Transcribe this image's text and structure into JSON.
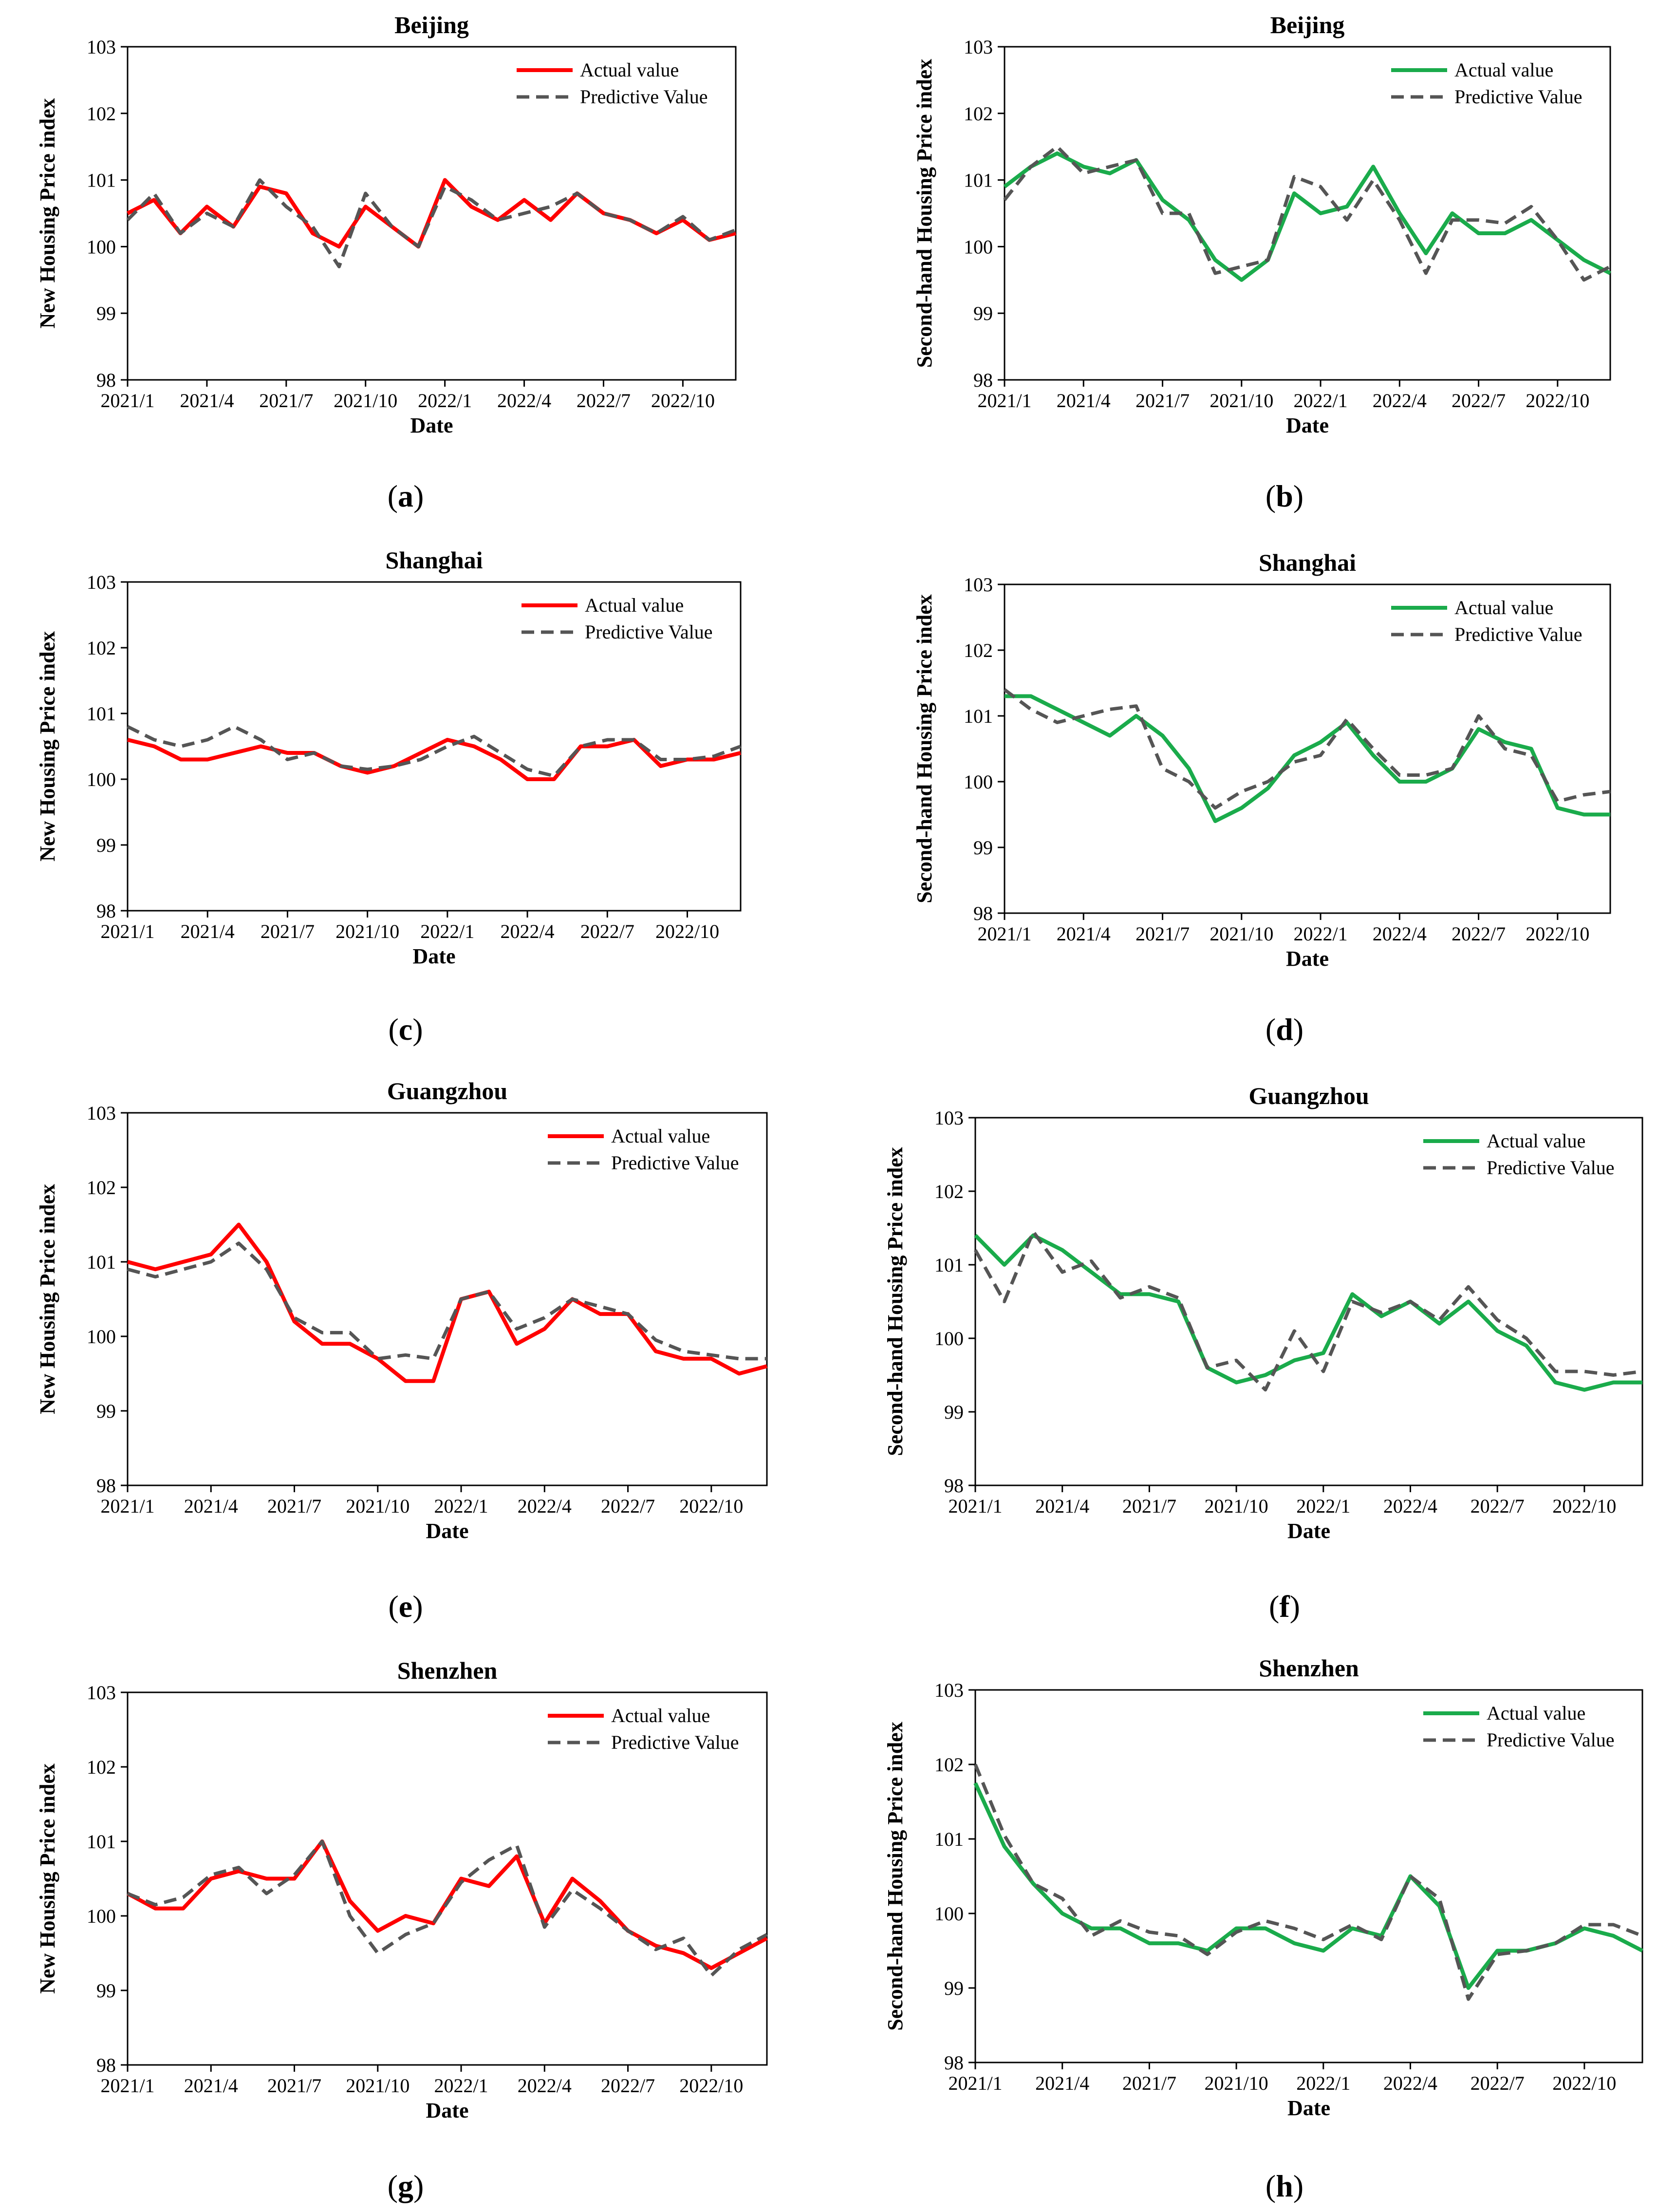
{
  "colors": {
    "actual_new": "#ff0000",
    "actual_second": "#1aab4b",
    "predicted": "#555555"
  },
  "chart_data": [
    {
      "panel": "a",
      "type": "line",
      "title": "Beijing",
      "xlabel": "Date",
      "ylabel": "New Housing Price index",
      "ylim": [
        98,
        103
      ],
      "y_ticks": [
        98,
        99,
        100,
        101,
        102,
        103
      ],
      "x": [
        "2021/1",
        "2021/2",
        "2021/3",
        "2021/4",
        "2021/5",
        "2021/6",
        "2021/7",
        "2021/8",
        "2021/9",
        "2021/10",
        "2021/11",
        "2021/12",
        "2022/1",
        "2022/2",
        "2022/3",
        "2022/4",
        "2022/5",
        "2022/6",
        "2022/7",
        "2022/8",
        "2022/9",
        "2022/10",
        "2022/11",
        "2022/12"
      ],
      "x_tick_labels": [
        "2021/1",
        "2021/4",
        "2021/7",
        "2021/10",
        "2022/1",
        "2022/4",
        "2022/7",
        "2022/10"
      ],
      "legend_position": "top-right",
      "series": [
        {
          "name": "Actual value",
          "style": "solid",
          "color_key": "actual_new",
          "values": [
            100.5,
            100.7,
            100.2,
            100.6,
            100.3,
            100.9,
            100.8,
            100.2,
            100.0,
            100.6,
            100.3,
            100.0,
            101.0,
            100.6,
            100.4,
            100.7,
            100.4,
            100.8,
            100.5,
            100.4,
            100.2,
            100.4,
            100.1,
            100.2
          ]
        },
        {
          "name": "Predictive Value",
          "style": "dashed",
          "color_key": "predicted",
          "values": [
            100.4,
            100.8,
            100.2,
            100.5,
            100.3,
            101.0,
            100.6,
            100.3,
            99.7,
            100.8,
            100.3,
            100.0,
            100.9,
            100.7,
            100.4,
            100.5,
            100.6,
            100.8,
            100.5,
            100.4,
            100.2,
            100.45,
            100.1,
            100.25
          ]
        }
      ]
    },
    {
      "panel": "b",
      "type": "line",
      "title": "Beijing",
      "xlabel": "Date",
      "ylabel": "Second-hand Housing Price index",
      "ylim": [
        98,
        103
      ],
      "y_ticks": [
        98,
        99,
        100,
        101,
        102,
        103
      ],
      "x": [
        "2021/1",
        "2021/2",
        "2021/3",
        "2021/4",
        "2021/5",
        "2021/6",
        "2021/7",
        "2021/8",
        "2021/9",
        "2021/10",
        "2021/11",
        "2021/12",
        "2022/1",
        "2022/2",
        "2022/3",
        "2022/4",
        "2022/5",
        "2022/6",
        "2022/7",
        "2022/8",
        "2022/9",
        "2022/10",
        "2022/11",
        "2022/12"
      ],
      "x_tick_labels": [
        "2021/1",
        "2021/4",
        "2021/7",
        "2021/10",
        "2022/1",
        "2022/4",
        "2022/7",
        "2022/10"
      ],
      "legend_position": "top-right",
      "series": [
        {
          "name": "Actual value",
          "style": "solid",
          "color_key": "actual_second",
          "values": [
            100.9,
            101.2,
            101.4,
            101.2,
            101.1,
            101.3,
            100.7,
            100.4,
            99.8,
            99.5,
            99.8,
            100.8,
            100.5,
            100.6,
            101.2,
            100.5,
            99.9,
            100.5,
            100.2,
            100.2,
            100.4,
            100.1,
            99.8,
            99.6
          ]
        },
        {
          "name": "Predictive Value",
          "style": "dashed",
          "color_key": "predicted",
          "values": [
            100.7,
            101.2,
            101.5,
            101.1,
            101.2,
            101.3,
            100.5,
            100.5,
            99.6,
            99.7,
            99.8,
            101.05,
            100.9,
            100.4,
            101.0,
            100.4,
            99.6,
            100.4,
            100.4,
            100.35,
            100.6,
            100.1,
            99.5,
            99.7
          ]
        }
      ]
    },
    {
      "panel": "c",
      "type": "line",
      "title": "Shanghai",
      "xlabel": "Date",
      "ylabel": "New Housing Price index",
      "ylim": [
        98,
        103
      ],
      "y_ticks": [
        98,
        99,
        100,
        101,
        102,
        103
      ],
      "x": [
        "2021/1",
        "2021/2",
        "2021/3",
        "2021/4",
        "2021/5",
        "2021/6",
        "2021/7",
        "2021/8",
        "2021/9",
        "2021/10",
        "2021/11",
        "2021/12",
        "2022/1",
        "2022/2",
        "2022/3",
        "2022/4",
        "2022/5",
        "2022/6",
        "2022/7",
        "2022/8",
        "2022/9",
        "2022/10",
        "2022/11",
        "2022/12"
      ],
      "x_tick_labels": [
        "2021/1",
        "2021/4",
        "2021/7",
        "2021/10",
        "2022/1",
        "2022/4",
        "2022/7",
        "2022/10"
      ],
      "legend_position": "top-right",
      "series": [
        {
          "name": "Actual value",
          "style": "solid",
          "color_key": "actual_new",
          "values": [
            100.6,
            100.5,
            100.3,
            100.3,
            100.4,
            100.5,
            100.4,
            100.4,
            100.2,
            100.1,
            100.2,
            100.4,
            100.6,
            100.5,
            100.3,
            100.0,
            100.0,
            100.5,
            100.5,
            100.6,
            100.2,
            100.3,
            100.3,
            100.4
          ]
        },
        {
          "name": "Predictive Value",
          "style": "dashed",
          "color_key": "predicted",
          "values": [
            100.8,
            100.6,
            100.5,
            100.6,
            100.8,
            100.6,
            100.3,
            100.4,
            100.2,
            100.15,
            100.2,
            100.3,
            100.5,
            100.65,
            100.4,
            100.15,
            100.05,
            100.5,
            100.6,
            100.6,
            100.3,
            100.3,
            100.35,
            100.5
          ]
        }
      ]
    },
    {
      "panel": "d",
      "type": "line",
      "title": "Shanghai",
      "xlabel": "Date",
      "ylabel": "Second-hand Housing Price index",
      "ylim": [
        98,
        103
      ],
      "y_ticks": [
        98,
        99,
        100,
        101,
        102,
        103
      ],
      "x": [
        "2021/1",
        "2021/2",
        "2021/3",
        "2021/4",
        "2021/5",
        "2021/6",
        "2021/7",
        "2021/8",
        "2021/9",
        "2021/10",
        "2021/11",
        "2021/12",
        "2022/1",
        "2022/2",
        "2022/3",
        "2022/4",
        "2022/5",
        "2022/6",
        "2022/7",
        "2022/8",
        "2022/9",
        "2022/10",
        "2022/11",
        "2022/12"
      ],
      "x_tick_labels": [
        "2021/1",
        "2021/4",
        "2021/7",
        "2021/10",
        "2022/1",
        "2022/4",
        "2022/7",
        "2022/10"
      ],
      "legend_position": "top-right",
      "series": [
        {
          "name": "Actual value",
          "style": "solid",
          "color_key": "actual_second",
          "values": [
            101.3,
            101.3,
            101.1,
            100.9,
            100.7,
            101.0,
            100.7,
            100.2,
            99.4,
            99.6,
            99.9,
            100.4,
            100.6,
            100.9,
            100.4,
            100.0,
            100.0,
            100.2,
            100.8,
            100.6,
            100.5,
            99.6,
            99.5,
            99.5
          ]
        },
        {
          "name": "Predictive Value",
          "style": "dashed",
          "color_key": "predicted",
          "values": [
            101.4,
            101.1,
            100.9,
            101.0,
            101.1,
            101.15,
            100.2,
            100.0,
            99.6,
            99.85,
            100.0,
            100.3,
            100.4,
            100.95,
            100.5,
            100.1,
            100.1,
            100.2,
            101.0,
            100.5,
            100.4,
            99.7,
            99.8,
            99.85
          ]
        }
      ]
    },
    {
      "panel": "e",
      "type": "line",
      "title": "Guangzhou",
      "xlabel": "Date",
      "ylabel": "New Housing Price index",
      "ylim": [
        98,
        103
      ],
      "y_ticks": [
        98,
        99,
        100,
        101,
        102,
        103
      ],
      "x": [
        "2021/1",
        "2021/2",
        "2021/3",
        "2021/4",
        "2021/5",
        "2021/6",
        "2021/7",
        "2021/8",
        "2021/9",
        "2021/10",
        "2021/11",
        "2021/12",
        "2022/1",
        "2022/2",
        "2022/3",
        "2022/4",
        "2022/5",
        "2022/6",
        "2022/7",
        "2022/8",
        "2022/9",
        "2022/10",
        "2022/11",
        "2022/12"
      ],
      "x_tick_labels": [
        "2021/1",
        "2021/4",
        "2021/7",
        "2021/10",
        "2022/1",
        "2022/4",
        "2022/7",
        "2022/10"
      ],
      "legend_position": "top-right",
      "series": [
        {
          "name": "Actual value",
          "style": "solid",
          "color_key": "actual_new",
          "values": [
            101.0,
            100.9,
            101.0,
            101.1,
            101.5,
            101.0,
            100.2,
            99.9,
            99.9,
            99.7,
            99.4,
            99.4,
            100.5,
            100.6,
            99.9,
            100.1,
            100.5,
            100.3,
            100.3,
            99.8,
            99.7,
            99.7,
            99.5,
            99.6
          ]
        },
        {
          "name": "Predictive Value",
          "style": "dashed",
          "color_key": "predicted",
          "values": [
            100.9,
            100.8,
            100.9,
            101.0,
            101.25,
            100.9,
            100.25,
            100.05,
            100.05,
            99.7,
            99.75,
            99.7,
            100.5,
            100.6,
            100.1,
            100.25,
            100.5,
            100.4,
            100.3,
            99.95,
            99.8,
            99.75,
            99.7,
            99.7
          ]
        }
      ]
    },
    {
      "panel": "f",
      "type": "line",
      "title": "Guangzhou",
      "xlabel": "Date",
      "ylabel": "Second-hand Housing Price index",
      "ylim": [
        98,
        103
      ],
      "y_ticks": [
        98,
        99,
        100,
        101,
        102,
        103
      ],
      "x": [
        "2021/1",
        "2021/2",
        "2021/3",
        "2021/4",
        "2021/5",
        "2021/6",
        "2021/7",
        "2021/8",
        "2021/9",
        "2021/10",
        "2021/11",
        "2021/12",
        "2022/1",
        "2022/2",
        "2022/3",
        "2022/4",
        "2022/5",
        "2022/6",
        "2022/7",
        "2022/8",
        "2022/9",
        "2022/10",
        "2022/11",
        "2022/12"
      ],
      "x_tick_labels": [
        "2021/1",
        "2021/4",
        "2021/7",
        "2021/10",
        "2022/1",
        "2022/4",
        "2022/7",
        "2022/10"
      ],
      "legend_position": "top-right",
      "series": [
        {
          "name": "Actual value",
          "style": "solid",
          "color_key": "actual_second",
          "values": [
            101.4,
            101.0,
            101.4,
            101.2,
            100.9,
            100.6,
            100.6,
            100.5,
            99.6,
            99.4,
            99.5,
            99.7,
            99.8,
            100.6,
            100.3,
            100.5,
            100.2,
            100.5,
            100.1,
            99.9,
            99.4,
            99.3,
            99.4,
            99.4
          ]
        },
        {
          "name": "Predictive Value",
          "style": "dashed",
          "color_key": "predicted",
          "values": [
            101.2,
            100.5,
            101.45,
            100.9,
            101.05,
            100.55,
            100.7,
            100.55,
            99.6,
            99.7,
            99.3,
            100.1,
            99.55,
            100.5,
            100.35,
            100.5,
            100.25,
            100.7,
            100.25,
            100.0,
            99.55,
            99.55,
            99.5,
            99.55
          ]
        }
      ]
    },
    {
      "panel": "g",
      "type": "line",
      "title": "Shenzhen",
      "xlabel": "Date",
      "ylabel": "New Housing Price index",
      "ylim": [
        98,
        103
      ],
      "y_ticks": [
        98,
        99,
        100,
        101,
        102,
        103
      ],
      "x": [
        "2021/1",
        "2021/2",
        "2021/3",
        "2021/4",
        "2021/5",
        "2021/6",
        "2021/7",
        "2021/8",
        "2021/9",
        "2021/10",
        "2021/11",
        "2021/12",
        "2022/1",
        "2022/2",
        "2022/3",
        "2022/4",
        "2022/5",
        "2022/6",
        "2022/7",
        "2022/8",
        "2022/9",
        "2022/10",
        "2022/11",
        "2022/12"
      ],
      "x_tick_labels": [
        "2021/1",
        "2021/4",
        "2021/7",
        "2021/10",
        "2022/1",
        "2022/4",
        "2022/7",
        "2022/10"
      ],
      "legend_position": "top-right",
      "series": [
        {
          "name": "Actual value",
          "style": "solid",
          "color_key": "actual_new",
          "values": [
            100.3,
            100.1,
            100.1,
            100.5,
            100.6,
            100.5,
            100.5,
            101.0,
            100.2,
            99.8,
            100.0,
            99.9,
            100.5,
            100.4,
            100.8,
            99.9,
            100.5,
            100.2,
            99.8,
            99.6,
            99.5,
            99.3,
            99.5,
            99.7
          ]
        },
        {
          "name": "Predictive Value",
          "style": "dashed",
          "color_key": "predicted",
          "values": [
            100.3,
            100.15,
            100.25,
            100.55,
            100.65,
            100.3,
            100.55,
            101.0,
            100.0,
            99.5,
            99.75,
            99.9,
            100.45,
            100.75,
            100.95,
            99.85,
            100.35,
            100.1,
            99.8,
            99.55,
            99.7,
            99.2,
            99.55,
            99.75
          ]
        }
      ]
    },
    {
      "panel": "h",
      "type": "line",
      "title": "Shenzhen",
      "xlabel": "Date",
      "ylabel": "Second-hand Housing Price index",
      "ylim": [
        98,
        103
      ],
      "y_ticks": [
        98,
        99,
        100,
        101,
        102,
        103
      ],
      "x": [
        "2021/1",
        "2021/2",
        "2021/3",
        "2021/4",
        "2021/5",
        "2021/6",
        "2021/7",
        "2021/8",
        "2021/9",
        "2021/10",
        "2021/11",
        "2021/12",
        "2022/1",
        "2022/2",
        "2022/3",
        "2022/4",
        "2022/5",
        "2022/6",
        "2022/7",
        "2022/8",
        "2022/9",
        "2022/10",
        "2022/11",
        "2022/12"
      ],
      "x_tick_labels": [
        "2021/1",
        "2021/4",
        "2021/7",
        "2021/10",
        "2022/1",
        "2022/4",
        "2022/7",
        "2022/10"
      ],
      "legend_position": "top-right",
      "series": [
        {
          "name": "Actual value",
          "style": "solid",
          "color_key": "actual_second",
          "values": [
            101.75,
            100.9,
            100.4,
            100.0,
            99.8,
            99.8,
            99.6,
            99.6,
            99.5,
            99.8,
            99.8,
            99.6,
            99.5,
            99.8,
            99.7,
            100.5,
            100.1,
            99.0,
            99.5,
            99.5,
            99.6,
            99.8,
            99.7,
            99.5
          ]
        },
        {
          "name": "Predictive Value",
          "style": "dashed",
          "color_key": "predicted",
          "values": [
            102.0,
            101.05,
            100.4,
            100.2,
            99.7,
            99.9,
            99.75,
            99.7,
            99.45,
            99.75,
            99.9,
            99.8,
            99.65,
            99.85,
            99.65,
            100.5,
            100.2,
            98.85,
            99.45,
            99.5,
            99.6,
            99.85,
            99.85,
            99.7
          ]
        }
      ]
    }
  ],
  "captions": [
    "a",
    "b",
    "c",
    "d",
    "e",
    "f",
    "g",
    "h"
  ]
}
